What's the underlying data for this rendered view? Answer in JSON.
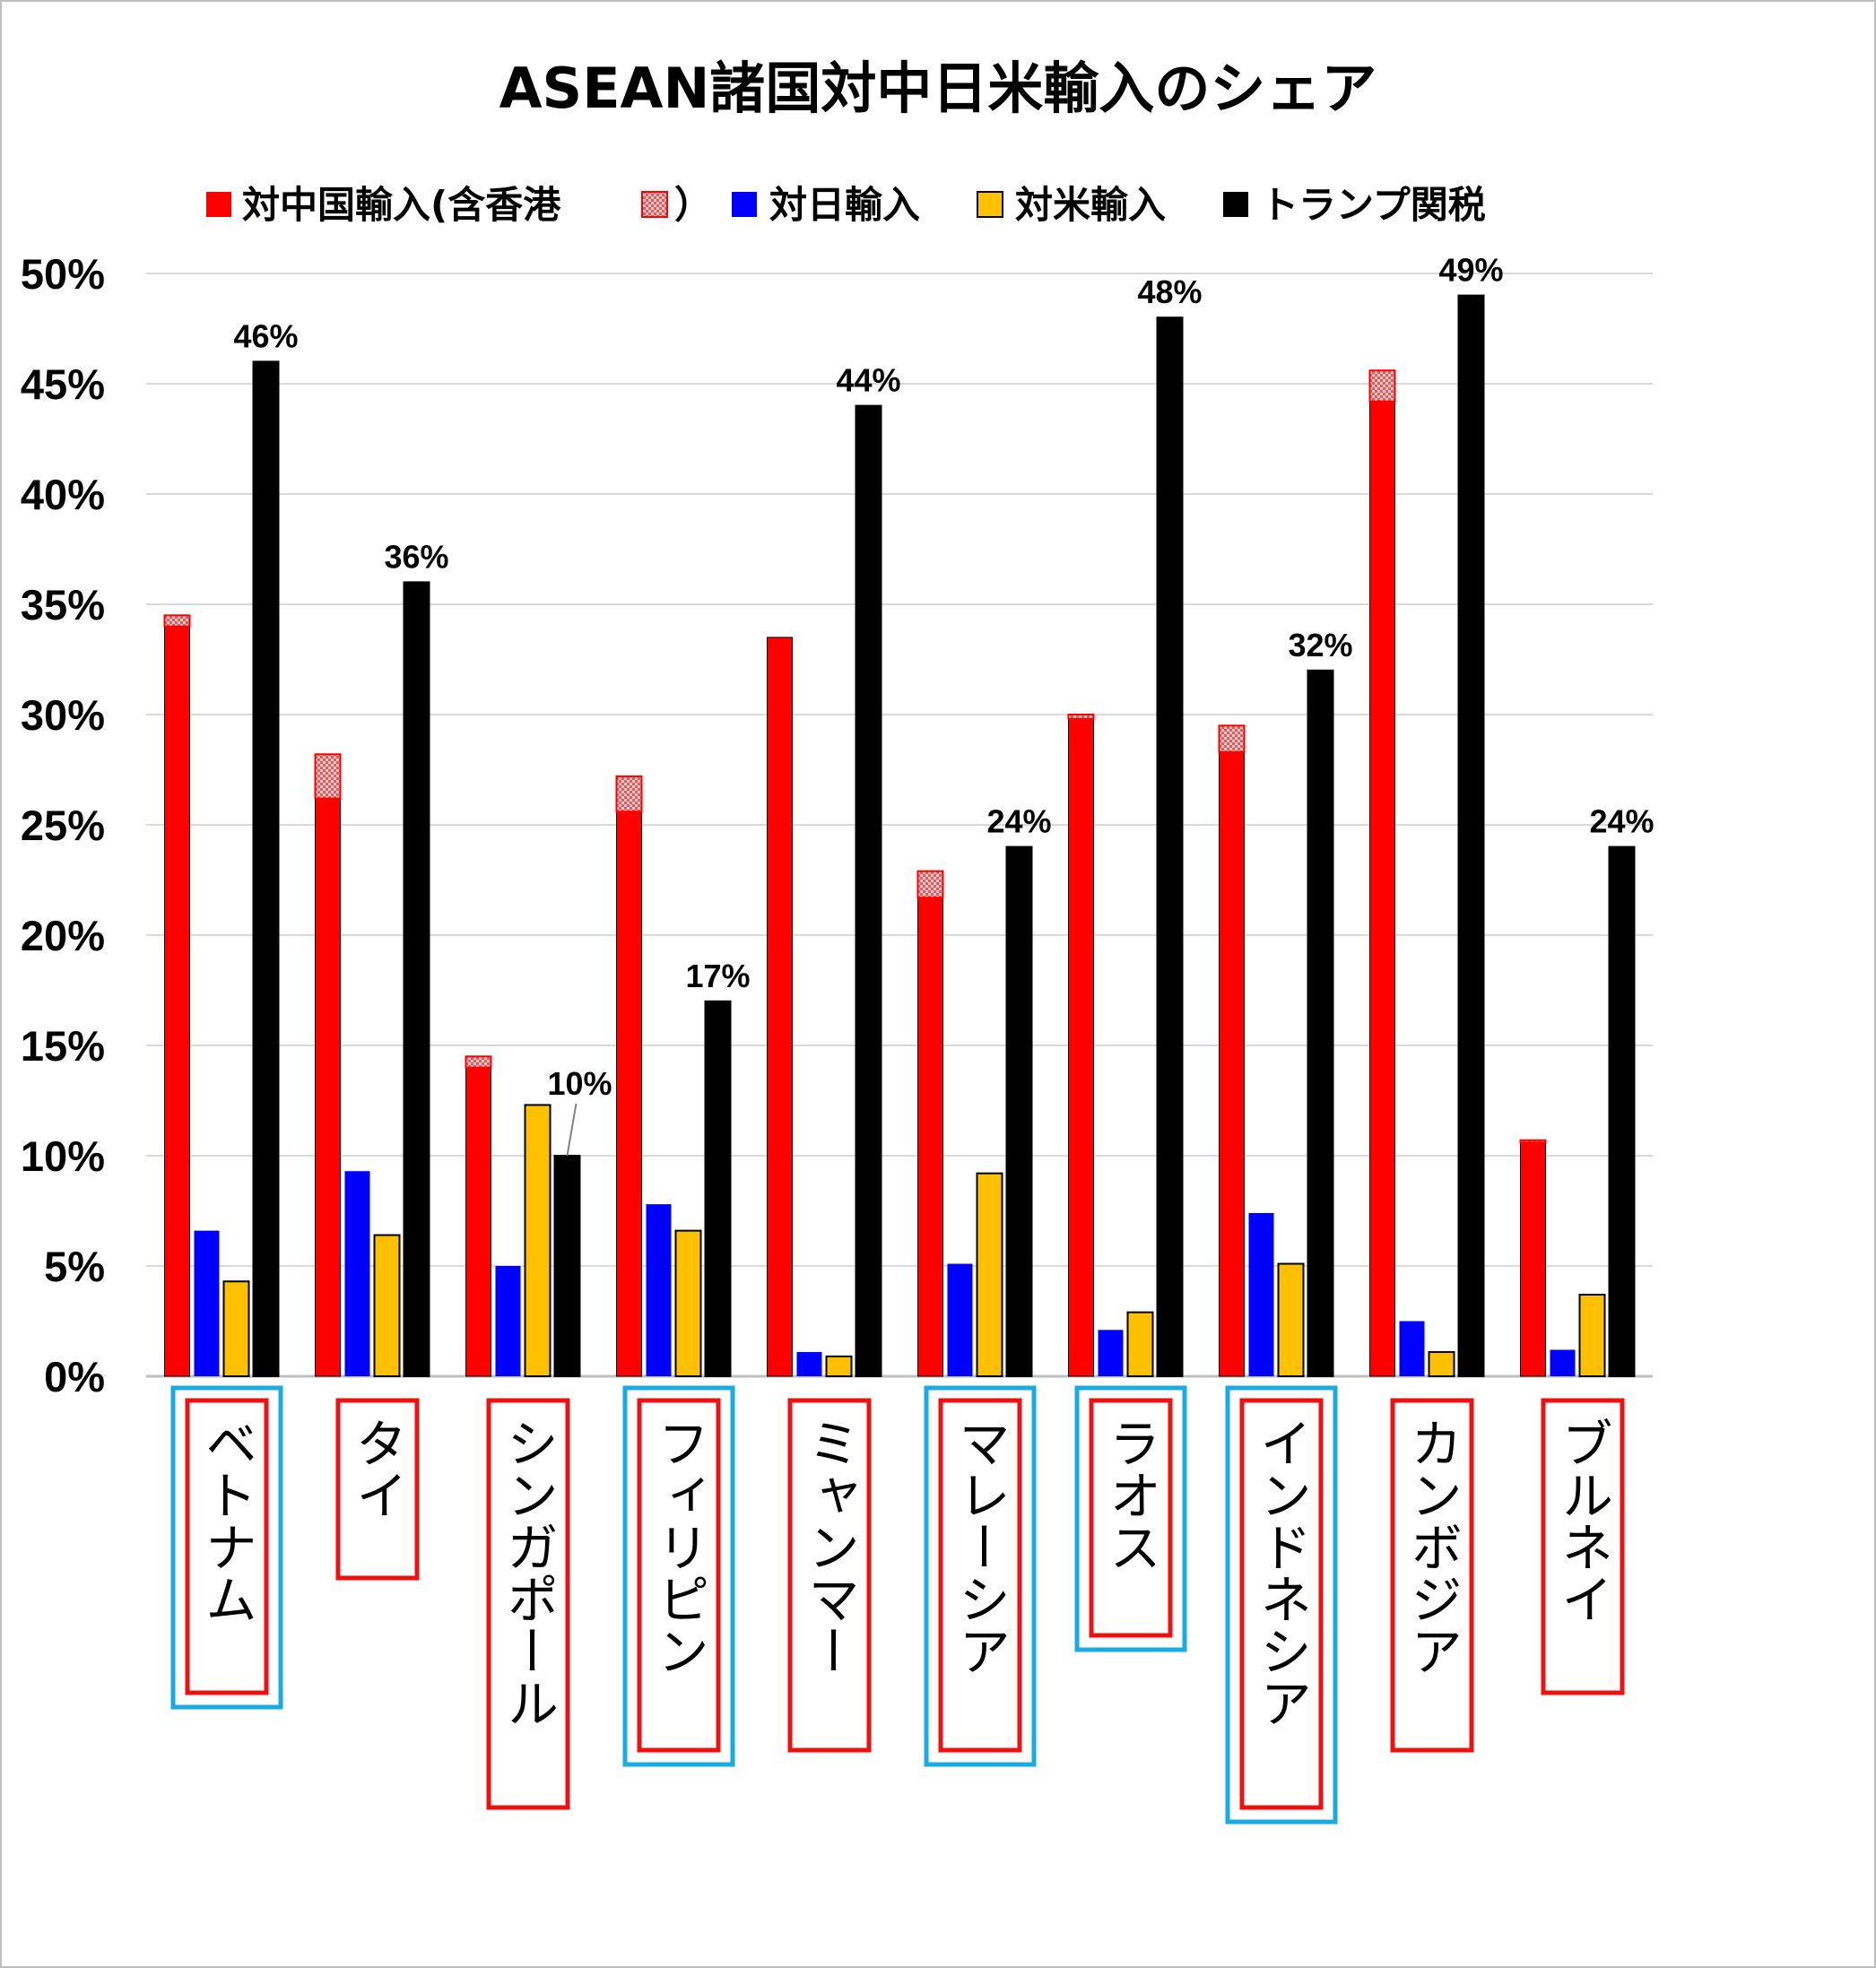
{
  "chart_data": {
    "type": "bar",
    "title": "ASEAN諸国対中日米輸入のシェア",
    "legend": {
      "position": "top",
      "entries": [
        {
          "label": "対中国輸入(含香港",
          "color": "#ff0000"
        },
        {
          "label": "）",
          "color": "#f4b4b4",
          "pattern": "hatched"
        },
        {
          "label": "対日輸入",
          "color": "#0000ff"
        },
        {
          "label": "対米輸入",
          "color": "#ffc000"
        },
        {
          "label": "トランプ関税",
          "color": "#000000"
        }
      ]
    },
    "ylim": [
      0,
      0.5
    ],
    "y_ticks": [
      "0%",
      "5%",
      "10%",
      "15%",
      "20%",
      "25%",
      "30%",
      "35%",
      "40%",
      "45%",
      "50%"
    ],
    "grid": true,
    "categories": [
      "ベトナム",
      "タイ",
      "シンガポール",
      "フィリピン",
      "ミャンマー",
      "マレーシア",
      "ラオス",
      "インドネシア",
      "カンボジア",
      "ブルネイ"
    ],
    "category_box_colors": [
      "blue",
      "red",
      "red",
      "blue",
      "red",
      "blue",
      "blue",
      "blue",
      "red",
      "red"
    ],
    "series": [
      {
        "name": "対中国輸入(含香港）",
        "color": "#ff0000",
        "values": [
          0.34,
          0.262,
          0.14,
          0.256,
          0.335,
          0.217,
          0.298,
          0.283,
          0.442,
          0.106
        ],
        "hongkong": [
          0.005,
          0.02,
          0.005,
          0.016,
          0.0,
          0.012,
          0.002,
          0.012,
          0.014,
          0.001
        ]
      },
      {
        "name": "対日輸入",
        "color": "#0000ff",
        "values": [
          0.066,
          0.093,
          0.05,
          0.078,
          0.011,
          0.051,
          0.021,
          0.074,
          0.025,
          0.012
        ]
      },
      {
        "name": "対米輸入",
        "color": "#ffc000",
        "values": [
          0.043,
          0.064,
          0.123,
          0.066,
          0.009,
          0.092,
          0.029,
          0.051,
          0.011,
          0.037
        ]
      },
      {
        "name": "トランプ関税",
        "color": "#000000",
        "values": [
          0.46,
          0.36,
          0.1,
          0.17,
          0.44,
          0.24,
          0.48,
          0.32,
          0.49,
          0.24
        ],
        "labels": [
          "46%",
          "36%",
          "10%",
          "17%",
          "44%",
          "24%",
          "48%",
          "32%",
          "49%",
          "24%"
        ]
      }
    ]
  }
}
